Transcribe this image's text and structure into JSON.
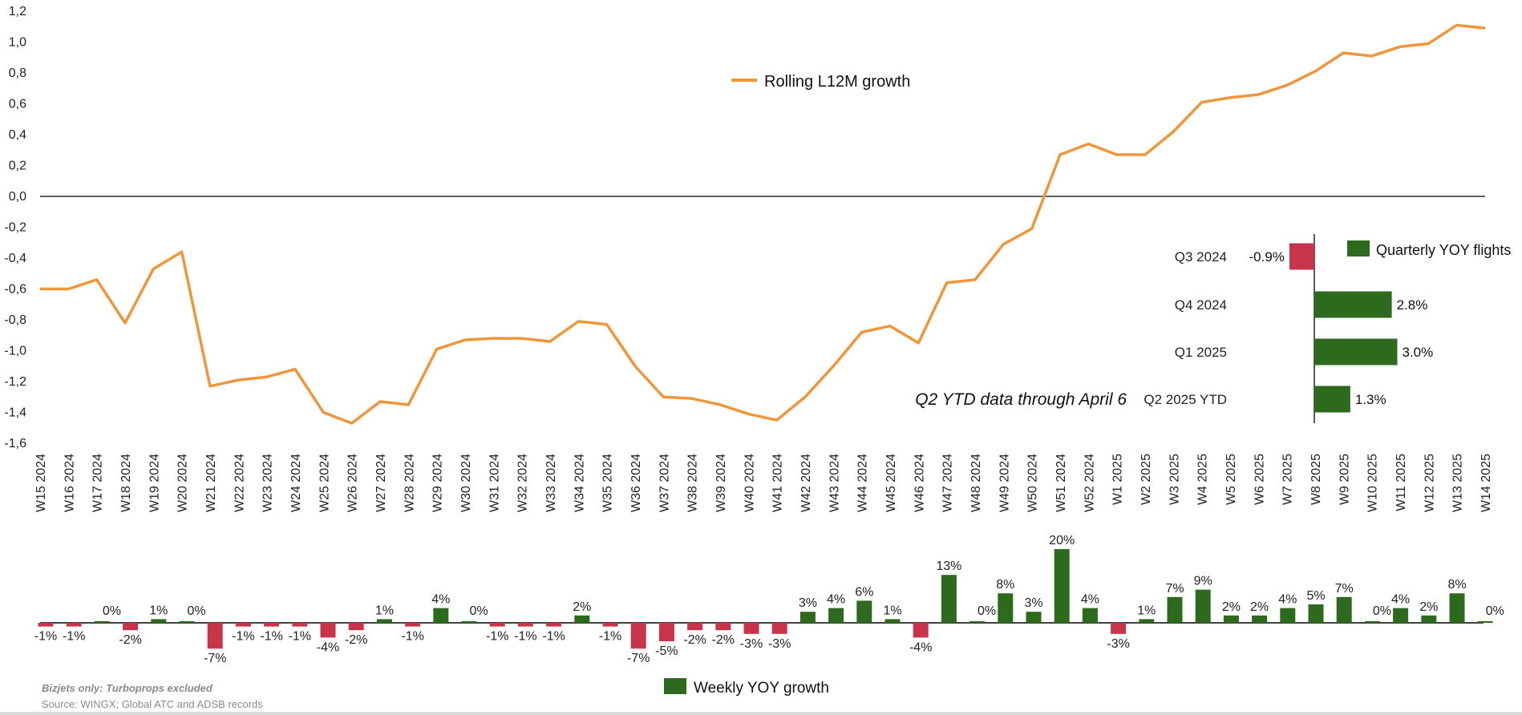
{
  "footnote": "Bizjets only: Turboprops excluded",
  "source": "Source: WINGX; Global ATC and ADSB records",
  "annotation": "Q2 YTD data through April 6",
  "colors": {
    "line": "#F0963A",
    "positive": "#2D6A1E",
    "negative": "#C8344A",
    "axis": "#000000"
  },
  "chart_data": [
    {
      "type": "line",
      "series": [
        {
          "name": "Rolling L12M growth",
          "values": [
            -0.6,
            -0.6,
            -0.54,
            -0.82,
            -0.47,
            -0.36,
            -1.23,
            -1.19,
            -1.17,
            -1.12,
            -1.4,
            -1.47,
            -1.33,
            -1.35,
            -0.99,
            -0.93,
            -0.92,
            -0.92,
            -0.94,
            -0.81,
            -0.83,
            -1.1,
            -1.3,
            -1.31,
            -1.35,
            -1.41,
            -1.45,
            -1.3,
            -1.1,
            -0.88,
            -0.84,
            -0.95,
            -0.56,
            -0.54,
            -0.31,
            -0.21,
            0.27,
            0.34,
            0.27,
            0.27,
            0.42,
            0.61,
            0.64,
            0.66,
            0.72,
            0.81,
            0.93,
            0.91,
            0.97,
            0.99,
            1.11,
            1.09
          ]
        }
      ],
      "categories": [
        "W15 2024",
        "W16 2024",
        "W17 2024",
        "W18 2024",
        "W19 2024",
        "W20 2024",
        "W21 2024",
        "W22 2024",
        "W23 2024",
        "W24 2024",
        "W25 2024",
        "W26 2024",
        "W27 2024",
        "W28 2024",
        "W29 2024",
        "W30 2024",
        "W31 2024",
        "W32 2024",
        "W33 2024",
        "W34 2024",
        "W35 2024",
        "W36 2024",
        "W37 2024",
        "W38 2024",
        "W39 2024",
        "W40 2024",
        "W41 2024",
        "W42 2024",
        "W43 2024",
        "W44 2024",
        "W45 2024",
        "W46 2024",
        "W47 2024",
        "W48 2024",
        "W49 2024",
        "W50 2024",
        "W51 2024",
        "W52 2024",
        "W1 2025",
        "W2 2025",
        "W3 2025",
        "W4 2025",
        "W5 2025",
        "W6 2025",
        "W7 2025",
        "W8 2025",
        "W9 2025",
        "W10 2025",
        "W11 2025",
        "W12 2025",
        "W13 2025",
        "W14 2025"
      ],
      "yticks": [
        "1,2",
        "1,0",
        "0,8",
        "0,6",
        "0,4",
        "0,2",
        "0,0",
        "-0,2",
        "-0,4",
        "-0,6",
        "-0,8",
        "-1,0",
        "-1,2",
        "-1,4",
        "-1,6"
      ],
      "ylim": [
        -1.6,
        1.2
      ],
      "legend": "top-center"
    },
    {
      "type": "bar",
      "orientation": "horizontal",
      "series": [
        {
          "name": "Quarterly YOY flights",
          "values": [
            -0.9,
            2.8,
            3.0,
            1.3
          ]
        }
      ],
      "categories": [
        "Q3 2024",
        "Q4 2024",
        "Q1 2025",
        "Q2 2025 YTD"
      ],
      "labels": [
        "-0.9%",
        "2.8%",
        "3.0%",
        "1.3%"
      ],
      "legend": "top-right"
    },
    {
      "type": "bar",
      "series": [
        {
          "name": "Weekly YOY growth",
          "values": [
            -1,
            -1,
            0,
            -2,
            1,
            0,
            -7,
            -1,
            -1,
            -1,
            -4,
            -2,
            1,
            -1,
            4,
            0,
            -1,
            -1,
            -1,
            2,
            -1,
            -7,
            -5,
            -2,
            -2,
            -3,
            -3,
            3,
            4,
            6,
            1,
            -4,
            13,
            0,
            8,
            3,
            20,
            4,
            -3,
            1,
            7,
            9,
            2,
            2,
            4,
            5,
            7,
            0,
            4,
            2,
            8,
            0
          ]
        }
      ],
      "labels": [
        "-1%",
        "-1%",
        "0%",
        "-2%",
        "1%",
        "0%",
        "-7%",
        "-1%",
        "-1%",
        "-1%",
        "-4%",
        "-2%",
        "1%",
        "-1%",
        "4%",
        "0%",
        "-1%",
        "-1%",
        "-1%",
        "2%",
        "-1%",
        "-7%",
        "-5%",
        "-2%",
        "-2%",
        "-3%",
        "-3%",
        "3%",
        "4%",
        "6%",
        "1%",
        "-4%",
        "13%",
        "0%",
        "8%",
        "3%",
        "20%",
        "4%",
        "-3%",
        "1%",
        "7%",
        "9%",
        "2%",
        "2%",
        "4%",
        "5%",
        "7%",
        "0%",
        "4%",
        "2%",
        "8%",
        "0%"
      ],
      "legend": "bottom-center"
    }
  ]
}
